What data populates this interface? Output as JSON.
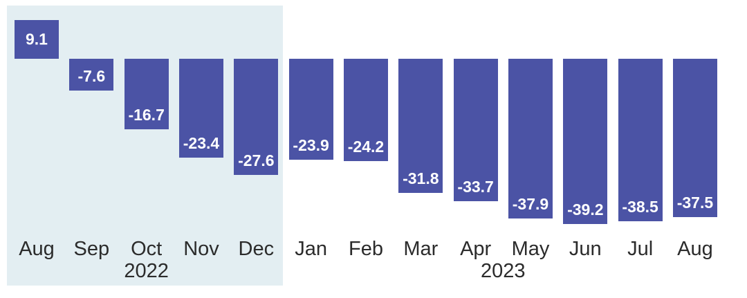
{
  "chart_data": {
    "type": "bar",
    "title": "",
    "xlabel": "",
    "ylabel": "",
    "categories": [
      "Aug",
      "Sep",
      "Oct",
      "Nov",
      "Dec",
      "Jan",
      "Feb",
      "Mar",
      "Apr",
      "May",
      "Jun",
      "Jul",
      "Aug"
    ],
    "values": [
      9.1,
      -7.6,
      -16.7,
      -23.4,
      -27.6,
      -23.9,
      -24.2,
      -31.8,
      -33.7,
      -37.9,
      -39.2,
      -38.5,
      -37.5
    ],
    "bar_labels": [
      "9.1",
      "-7.6",
      "-16.7",
      "-23.4",
      "-27.6",
      "-23.9",
      "-24.2",
      "-31.8",
      "-33.7",
      "-37.9",
      "-39.2",
      "-38.5",
      "-37.5"
    ],
    "year_groups": [
      {
        "label": "2022",
        "start": 0,
        "end": 4,
        "highlighted": true
      },
      {
        "label": "2023",
        "start": 5,
        "end": 12,
        "highlighted": false
      }
    ],
    "ylim": [
      -39.2,
      9.1
    ],
    "grid": false,
    "legend": null,
    "value_labels_inside_bars": true,
    "colors": {
      "bar": "#4B53A5",
      "value_label": "#FFFFFF",
      "axis_label": "#2B2B2B",
      "highlight_bg": "#E3EEF2",
      "page_bg": "#FFFFFF"
    }
  }
}
